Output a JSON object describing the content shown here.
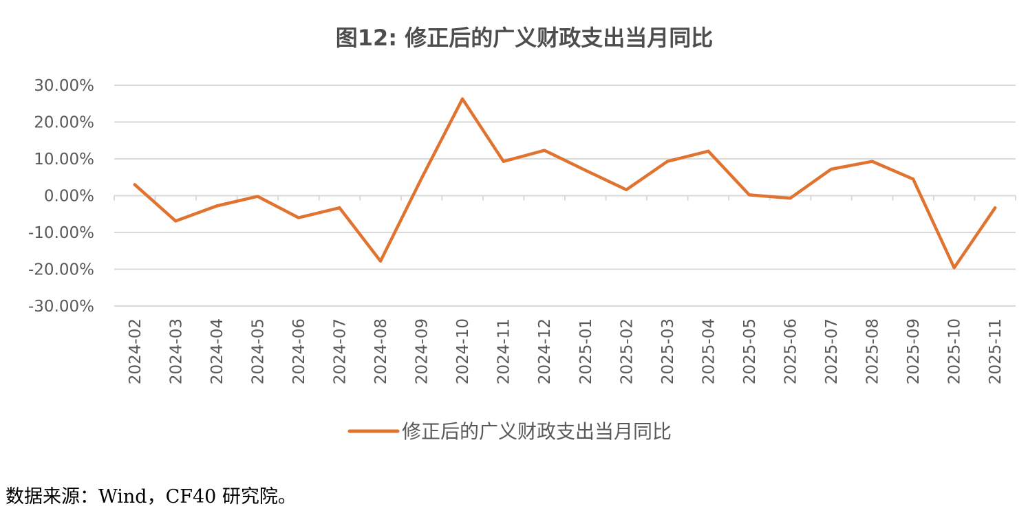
{
  "chart_data": {
    "type": "line",
    "title": "图12: 修正后的广义财政支出当月同比",
    "xlabel": "",
    "ylabel": "",
    "ylim": [
      -30,
      30
    ],
    "yticks": [
      "30.00%",
      "20.00%",
      "10.00%",
      "0.00%",
      "-10.00%",
      "-20.00%",
      "-30.00%"
    ],
    "ytick_values": [
      30,
      20,
      10,
      0,
      -10,
      -20,
      -30
    ],
    "categories": [
      "2024-02",
      "2024-03",
      "2024-04",
      "2024-05",
      "2024-06",
      "2024-07",
      "2024-08",
      "2024-09",
      "2024-10",
      "2024-11",
      "2024-12",
      "2025-01",
      "2025-02",
      "2025-03",
      "2025-04",
      "2025-05",
      "2025-06",
      "2025-07",
      "2025-08",
      "2025-09",
      "2025-10",
      "2025-11"
    ],
    "series": [
      {
        "name": "修正后的广义财政支出当月同比",
        "color": "#e07330",
        "values": [
          3.0,
          -6.9,
          -2.8,
          -0.2,
          -6.0,
          -3.3,
          -17.8,
          4.7,
          26.3,
          9.3,
          12.3,
          6.9,
          1.6,
          9.3,
          12.1,
          0.2,
          -0.7,
          7.2,
          9.3,
          4.5,
          -19.6,
          -3.3
        ]
      }
    ],
    "grid": true,
    "legend_position": "bottom"
  },
  "source": "数据来源：Wind，CF40 研究院。"
}
